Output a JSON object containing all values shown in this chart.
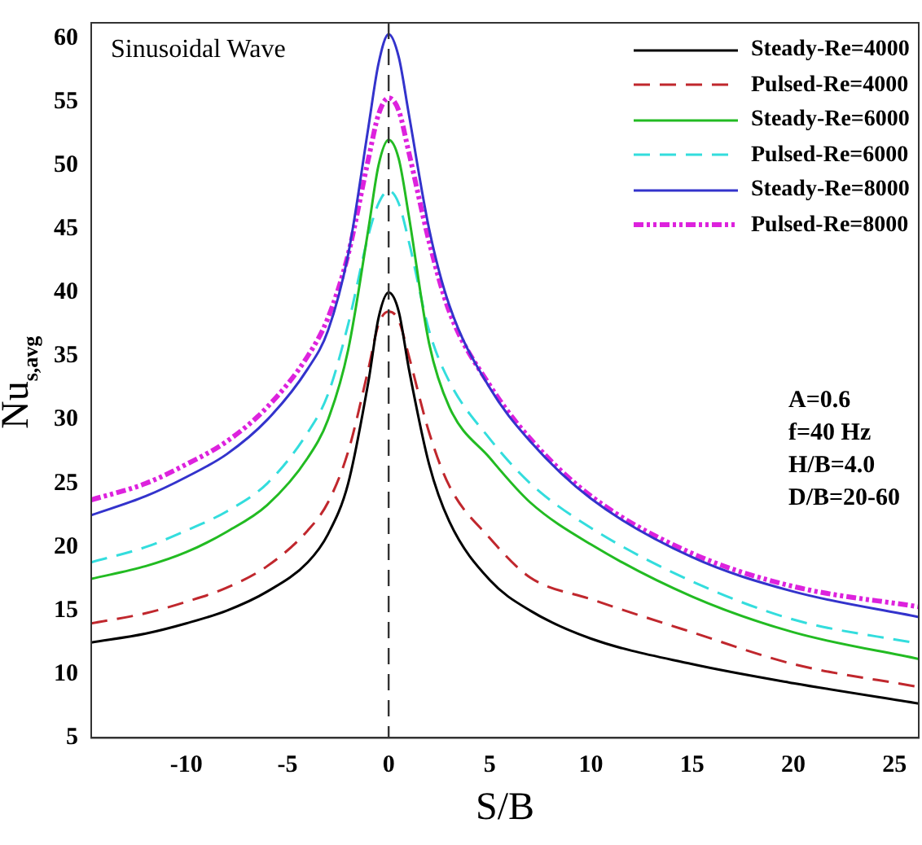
{
  "chart_data": {
    "type": "line",
    "xlabel": "S/B",
    "ylabel": "Nu$_{s,avg}$",
    "x": [
      -14.7,
      -12,
      -10,
      -8,
      -6,
      -4,
      -3,
      -2,
      -1,
      -0.5,
      0,
      0.5,
      1,
      2,
      3,
      5,
      7,
      10,
      15,
      20,
      26.2
    ],
    "series": [
      {
        "name": "Steady-Re=4000",
        "color": "#000000",
        "line_style": "solid",
        "values": [
          12.5,
          13.2,
          14,
          15,
          16.5,
          18.8,
          21,
          25,
          33,
          38,
          40,
          38.5,
          34,
          26.5,
          22,
          17.4,
          15,
          12.8,
          10.8,
          9.3,
          7.7
        ]
      },
      {
        "name": "Pulsed-Re=4000",
        "color": "#c0272d",
        "line_style": "dashed",
        "values": [
          14,
          14.8,
          15.7,
          16.8,
          18.5,
          21.3,
          23.5,
          27.5,
          34,
          37.5,
          38.5,
          37.8,
          35,
          29,
          24.8,
          20.7,
          17.6,
          15.9,
          13.3,
          10.8,
          9
        ]
      },
      {
        "name": "Steady-Re=6000",
        "color": "#22bb22",
        "line_style": "solid",
        "values": [
          17.5,
          18.5,
          19.6,
          21.2,
          23.3,
          27,
          30,
          35.5,
          45,
          50,
          52,
          50.5,
          46,
          36,
          31,
          27,
          23.5,
          20.2,
          16.1,
          13.3,
          11.2
        ]
      },
      {
        "name": "Pulsed-Re=6000",
        "color": "#33dddd",
        "line_style": "dashed",
        "values": [
          18.8,
          20,
          21.3,
          22.8,
          25,
          29,
          32,
          37.5,
          44.5,
          47,
          48,
          47,
          44,
          37,
          33,
          28.5,
          25,
          21.5,
          17.3,
          14.3,
          12.4
        ]
      },
      {
        "name": "Steady-Re=8000",
        "color": "#3333cc",
        "line_style": "solid",
        "values": [
          22.5,
          24,
          25.5,
          27.3,
          30,
          34,
          37,
          43,
          53,
          58,
          60.3,
          58.5,
          54,
          45,
          39,
          32.5,
          28.3,
          23.8,
          19.2,
          16.5,
          14.5
        ]
      },
      {
        "name": "Pulsed-Re=8000",
        "color": "#dd22dd",
        "line_style": "dotted",
        "values": [
          23.7,
          25,
          26.5,
          28.3,
          31,
          35,
          38,
          43,
          50.5,
          54,
          55.3,
          54.3,
          51,
          44,
          38.5,
          32.7,
          28.5,
          24,
          19.5,
          16.9,
          15.3
        ]
      }
    ],
    "xlim": [
      -14.7,
      26.2
    ],
    "xticks": [
      -10,
      -5,
      0,
      5,
      10,
      15,
      20,
      25
    ],
    "ylim": [
      5,
      61.2
    ],
    "yticks": [
      5,
      10,
      15,
      20,
      25,
      30,
      35,
      40,
      45,
      50,
      55,
      60
    ],
    "ref_lines": [
      {
        "axis": "x",
        "value": 0,
        "color": "#333333",
        "line_style": "dashed"
      }
    ],
    "annotations": [
      "Sinusoidal Wave",
      "A=0.6",
      "f=40 Hz",
      "H/B=4.0",
      "D/B=20-60"
    ],
    "legend": "top right",
    "grid": false
  }
}
